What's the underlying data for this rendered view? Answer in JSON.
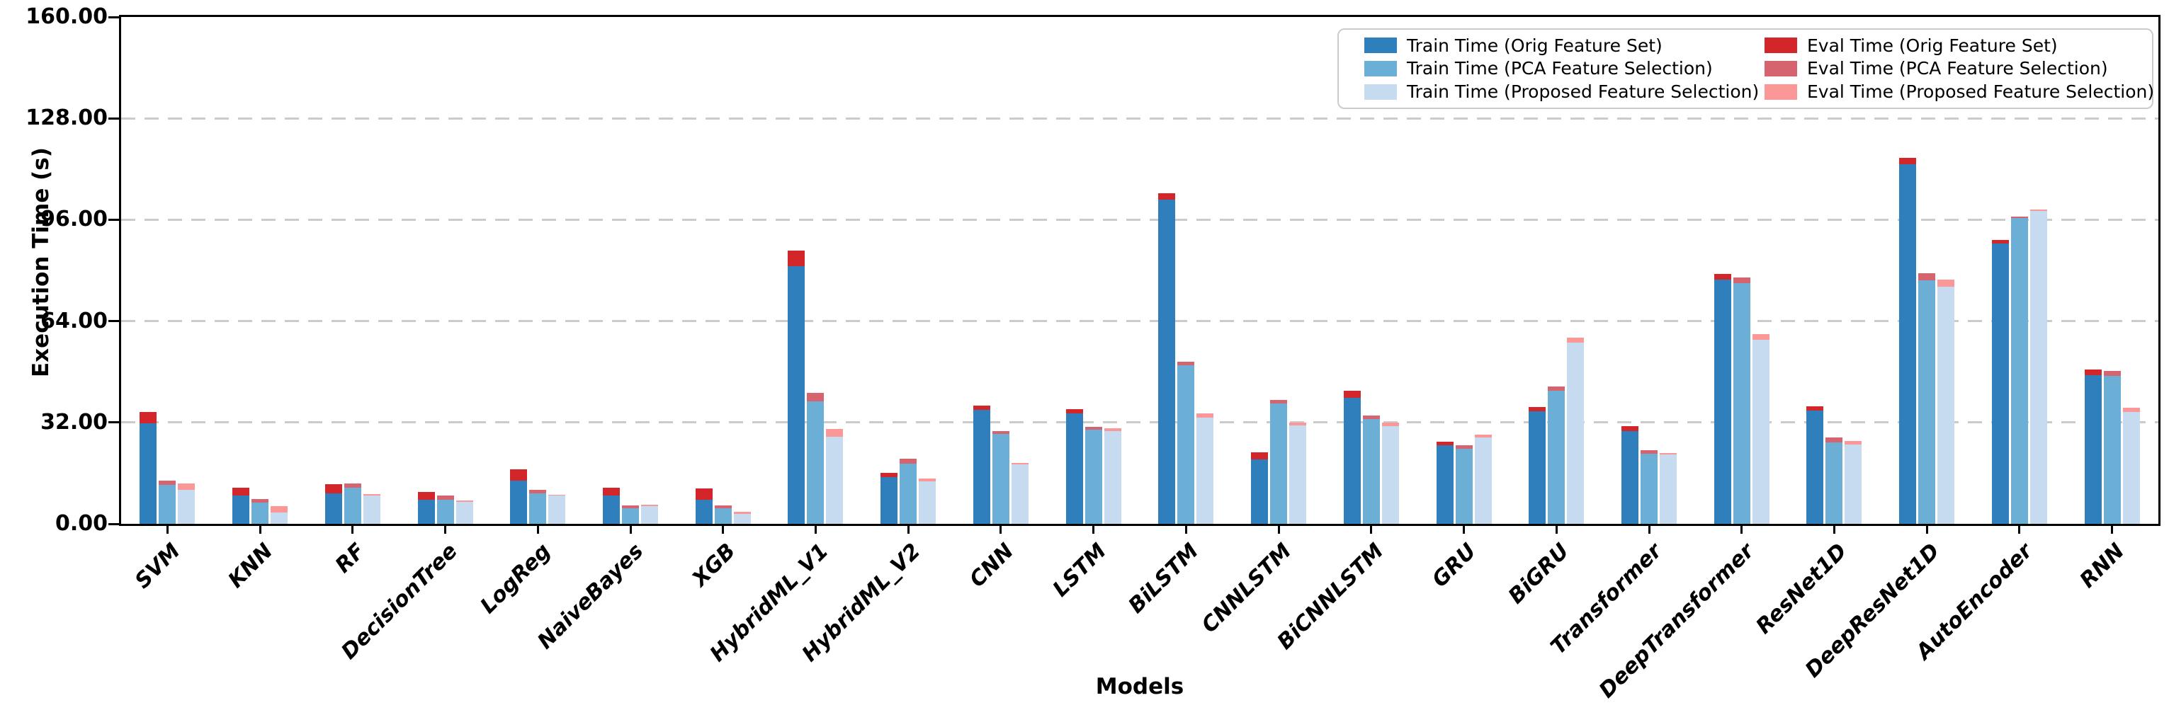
{
  "figure": {
    "xlabel": "Models",
    "ylabel": "Execution Time (s)"
  },
  "chart_data": {
    "type": "bar",
    "title": "",
    "xlabel": "Models",
    "ylabel": "Execution Time (s)",
    "ylim": [
      0,
      160
    ],
    "ytick_values": [
      0,
      32,
      64,
      96,
      128,
      160
    ],
    "ytick_labels": [
      "0.00",
      "32.00",
      "64.00",
      "96.00",
      "128.00",
      "160.00"
    ],
    "grid_values": [
      32,
      64,
      96,
      128
    ],
    "grid_style": "dashed horizontal light-gray",
    "legend_position": "upper right, 2 columns, white box with gray rounded border",
    "bar_structure": "3 grouped bars per model; eval time stacked on top of matching train time",
    "categories": [
      "SVM",
      "KNN",
      "RF",
      "DecisionTree",
      "LogReg",
      "NaiveBayes",
      "XGB",
      "HybridML_V1",
      "HybridML_V2",
      "CNN",
      "LSTM",
      "BiLSTM",
      "CNNLSTM",
      "BiCNNLSTM",
      "GRU",
      "BiGRU",
      "Transformer",
      "DeepTransformer",
      "ResNet1D",
      "DeepResNet1D",
      "AutoEncoder",
      "RNN"
    ],
    "series": [
      {
        "name": "Train Time (Orig Feature Set)",
        "role": "train",
        "variant": "orig",
        "color": "#2f7fbc",
        "values": [
          31.8,
          8.9,
          9.7,
          7.7,
          13.7,
          8.9,
          7.7,
          81.3,
          14.7,
          35.9,
          34.8,
          102.4,
          20.3,
          39.8,
          24.8,
          35.5,
          29.3,
          77.2,
          35.8,
          113.6,
          88.4,
          47.0
        ]
      },
      {
        "name": "Train Time (PCA Feature Selection)",
        "role": "train",
        "variant": "pca",
        "color": "#6baed6",
        "values": [
          12.2,
          6.6,
          11.3,
          7.6,
          9.7,
          5.0,
          5.0,
          38.7,
          19.0,
          28.4,
          29.7,
          50.0,
          38.0,
          33.1,
          23.7,
          42.1,
          22.2,
          76.0,
          25.7,
          76.9,
          96.5,
          46.6
        ]
      },
      {
        "name": "Train Time (Proposed Feature Selection)",
        "role": "train",
        "variant": "proposed",
        "color": "#c6dbef",
        "values": [
          10.8,
          3.5,
          8.9,
          7.0,
          8.9,
          5.5,
          3.2,
          27.4,
          13.4,
          18.8,
          29.2,
          33.5,
          31.0,
          30.9,
          27.2,
          57.1,
          21.8,
          58.0,
          25.0,
          74.9,
          98.7,
          35.2
        ]
      },
      {
        "name": "Eval Time (Orig Feature Set)",
        "role": "eval",
        "variant": "orig",
        "color": "#d2262a",
        "values": [
          3.6,
          2.6,
          2.8,
          2.3,
          3.6,
          2.6,
          3.4,
          5.0,
          1.5,
          1.5,
          1.4,
          1.9,
          2.3,
          2.3,
          1.1,
          1.3,
          1.5,
          1.6,
          1.4,
          1.9,
          1.3,
          1.7
        ]
      },
      {
        "name": "Eval Time (PCA Feature Selection)",
        "role": "eval",
        "variant": "pca",
        "color": "#d5646e",
        "values": [
          1.5,
          1.3,
          1.4,
          1.3,
          1.0,
          0.8,
          0.9,
          2.7,
          1.5,
          0.8,
          1.0,
          1.1,
          1.1,
          1.1,
          1.2,
          1.3,
          1.1,
          1.8,
          1.6,
          2.1,
          0.5,
          1.7
        ]
      },
      {
        "name": "Eval Time (Proposed Feature Selection)",
        "role": "eval",
        "variant": "proposed",
        "color": "#fc9797",
        "values": [
          2.0,
          2.0,
          0.6,
          0.3,
          0.3,
          0.6,
          0.5,
          2.5,
          0.9,
          0.4,
          0.9,
          1.3,
          1.0,
          1.1,
          1.0,
          1.7,
          0.5,
          2.0,
          1.1,
          2.2,
          0.6,
          1.5
        ]
      }
    ]
  },
  "colors": {
    "spine": "#000000",
    "gridline": "#cbcbcb",
    "background": "#ffffff",
    "legend_border": "#cccccc"
  }
}
